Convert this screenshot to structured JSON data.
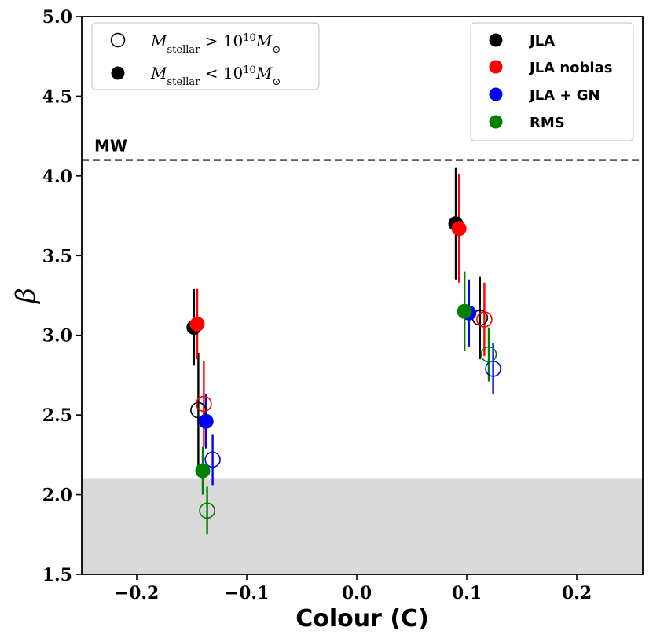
{
  "chart_data": {
    "type": "scatter",
    "title": "",
    "xlabel": "Colour (C)",
    "ylabel": "β",
    "xlim": [
      -0.25,
      0.26
    ],
    "ylim": [
      1.5,
      5.0
    ],
    "x_ticks": [
      -0.2,
      -0.1,
      0.0,
      0.1,
      0.2
    ],
    "x_tick_labels": [
      "−0.2",
      "−0.1",
      "0.0",
      "0.1",
      "0.2"
    ],
    "y_ticks": [
      1.5,
      2.0,
      2.5,
      3.0,
      3.5,
      4.0,
      4.5,
      5.0
    ],
    "y_tick_labels": [
      "1.5",
      "2.0",
      "2.5",
      "3.0",
      "3.5",
      "4.0",
      "4.5",
      "5.0"
    ],
    "grid": false,
    "reference_line": {
      "label": "MW",
      "y": 4.1,
      "style": "dashed"
    },
    "shaded_region": {
      "y_from": 1.5,
      "y_to": 2.1,
      "color": "#d9d9d9"
    },
    "legend_mass": {
      "position": "top-left",
      "entries": [
        {
          "marker": "open",
          "prefix": "M",
          "sub": "stellar",
          "op": " > 10",
          "exp": "10",
          "suffix": "M",
          "suffix_sub": "⊙"
        },
        {
          "marker": "filled",
          "prefix": "M",
          "sub": "stellar",
          "op": " < 10",
          "exp": "10",
          "suffix": "M",
          "suffix_sub": "⊙"
        }
      ]
    },
    "legend_series": {
      "position": "top-right"
    },
    "series": [
      {
        "name": "JLA",
        "color": "#000000",
        "points": [
          {
            "x": -0.148,
            "y": 3.05,
            "err": 0.24,
            "filled": true
          },
          {
            "x": -0.144,
            "y": 2.53,
            "err": 0.36,
            "filled": false
          },
          {
            "x": 0.09,
            "y": 3.7,
            "err": 0.35,
            "filled": true
          },
          {
            "x": 0.112,
            "y": 3.11,
            "err": 0.26,
            "filled": false
          }
        ]
      },
      {
        "name": "JLA nobias",
        "color": "#ff0000",
        "points": [
          {
            "x": -0.145,
            "y": 3.07,
            "err": 0.22,
            "filled": true
          },
          {
            "x": -0.139,
            "y": 2.57,
            "err": 0.27,
            "filled": false
          },
          {
            "x": 0.093,
            "y": 3.67,
            "err": 0.34,
            "filled": true
          },
          {
            "x": 0.116,
            "y": 3.1,
            "err": 0.23,
            "filled": false
          }
        ]
      },
      {
        "name": "JLA + GN",
        "color": "#0000ff",
        "points": [
          {
            "x": -0.137,
            "y": 2.46,
            "err": 0.17,
            "filled": true
          },
          {
            "x": -0.131,
            "y": 2.22,
            "err": 0.16,
            "filled": false
          },
          {
            "x": 0.102,
            "y": 3.14,
            "err": 0.21,
            "filled": true
          },
          {
            "x": 0.124,
            "y": 2.79,
            "err": 0.16,
            "filled": false
          }
        ]
      },
      {
        "name": "RMS",
        "color": "#008000",
        "points": [
          {
            "x": -0.14,
            "y": 2.15,
            "err": 0.15,
            "filled": true
          },
          {
            "x": -0.136,
            "y": 1.9,
            "err": 0.15,
            "filled": false
          },
          {
            "x": 0.098,
            "y": 3.15,
            "err": 0.25,
            "filled": true
          },
          {
            "x": 0.12,
            "y": 2.88,
            "err": 0.17,
            "filled": false
          }
        ]
      }
    ]
  }
}
